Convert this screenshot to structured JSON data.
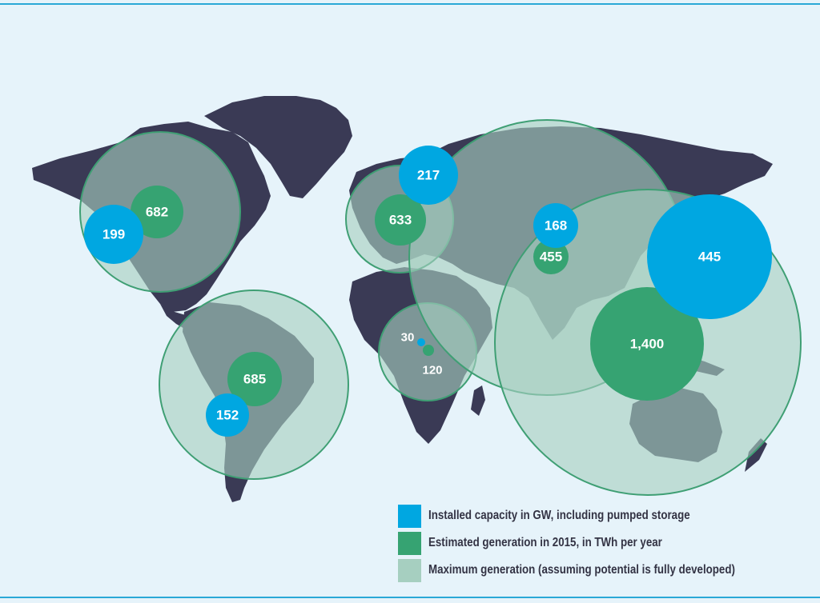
{
  "colors": {
    "background": "#e6f3fa",
    "land": "#3a3a55",
    "capacity": "#00a7e1",
    "generation": "#36a372",
    "maximum_fill": "#a6cfc0",
    "maximum_stroke": "#3f9f74",
    "rule": "#2aa8d6"
  },
  "regions": [
    {
      "id": "north-america",
      "installed_capacity_gw": "199",
      "estimated_generation_twh": "682",
      "has_maximum_generation_circle": true
    },
    {
      "id": "south-america",
      "installed_capacity_gw": "152",
      "estimated_generation_twh": "685",
      "has_maximum_generation_circle": true
    },
    {
      "id": "europe",
      "installed_capacity_gw": "217",
      "estimated_generation_twh": "633",
      "has_maximum_generation_circle": true
    },
    {
      "id": "africa",
      "installed_capacity_gw": "30",
      "estimated_generation_twh": "120",
      "has_maximum_generation_circle": true
    },
    {
      "id": "asia",
      "installed_capacity_gw": "168",
      "estimated_generation_twh": "455",
      "has_maximum_generation_circle": true
    },
    {
      "id": "asia-pacific",
      "installed_capacity_gw": "445",
      "estimated_generation_twh": "1,400",
      "has_maximum_generation_circle": true
    }
  ],
  "legend": [
    {
      "label": "Installed capacity in GW, including pumped storage",
      "color": "#00a7e1"
    },
    {
      "label": "Estimated generation in 2015, in TWh per year",
      "color": "#36a372"
    },
    {
      "label": "Maximum generation (assuming potential is fully developed)",
      "color": "#a6cfc0"
    }
  ]
}
